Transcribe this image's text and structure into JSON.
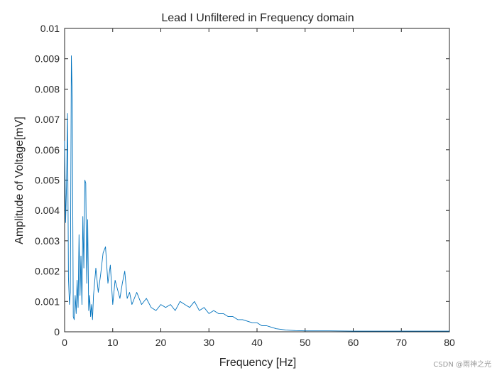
{
  "chart_data": {
    "type": "line",
    "title": "Lead I Unfiltered in Frequency domain",
    "xlabel": "Frequency [Hz]",
    "ylabel": "Amplitude of Voltage[mV]",
    "xlim": [
      0,
      80
    ],
    "ylim": [
      0,
      0.01
    ],
    "xticks": [
      "0",
      "10",
      "20",
      "30",
      "40",
      "50",
      "60",
      "70",
      "80"
    ],
    "yticks": [
      "0",
      "0.001",
      "0.002",
      "0.003",
      "0.004",
      "0.005",
      "0.006",
      "0.007",
      "0.008",
      "0.009",
      "0.01"
    ],
    "grid": false,
    "series_color": "#0072BD",
    "series": [
      {
        "x": [
          0,
          0.2,
          0.4,
          0.6,
          0.8,
          1.0,
          1.2,
          1.4,
          1.6,
          1.8,
          2.0,
          2.2,
          2.4,
          2.6,
          2.8,
          3.0,
          3.2,
          3.4,
          3.6,
          3.8,
          4.0,
          4.2,
          4.4,
          4.6,
          4.8,
          5.0,
          5.2,
          5.4,
          5.6,
          5.8,
          6.0,
          6.5,
          7.0,
          7.5,
          8.0,
          8.5,
          9.0,
          9.5,
          10.0,
          10.5,
          11.0,
          11.5,
          12.0,
          12.5,
          13.0,
          13.5,
          14.0,
          15,
          16,
          17,
          18,
          19,
          20,
          21,
          22,
          23,
          24,
          25,
          26,
          27,
          28,
          29,
          30,
          31,
          32,
          33,
          34,
          35,
          36,
          37,
          38,
          39,
          40,
          41,
          42,
          43,
          44,
          45,
          46,
          47,
          48,
          50,
          55,
          60,
          65,
          70,
          75,
          80
        ],
        "y": [
          0.0063,
          0.0036,
          0.0048,
          0.0072,
          0.0018,
          0.0009,
          0.0013,
          0.0091,
          0.0077,
          0.0005,
          0.0004,
          0.0012,
          0.0006,
          0.0017,
          0.0008,
          0.0032,
          0.0012,
          0.0025,
          0.0009,
          0.0038,
          0.0021,
          0.005,
          0.0049,
          0.0016,
          0.0037,
          0.0007,
          0.0012,
          0.0005,
          0.0009,
          0.0004,
          0.0012,
          0.0021,
          0.0013,
          0.0019,
          0.0026,
          0.0028,
          0.0016,
          0.0022,
          0.0009,
          0.0017,
          0.0014,
          0.0011,
          0.0016,
          0.002,
          0.0011,
          0.0013,
          0.0009,
          0.0013,
          0.0009,
          0.0011,
          0.0008,
          0.0007,
          0.0009,
          0.0008,
          0.0009,
          0.0007,
          0.001,
          0.0009,
          0.0008,
          0.001,
          0.0007,
          0.0008,
          0.0006,
          0.0007,
          0.0006,
          0.0006,
          0.0005,
          0.0005,
          0.0004,
          0.0004,
          0.00035,
          0.0003,
          0.0003,
          0.0002,
          0.0002,
          0.00015,
          0.0001,
          8e-05,
          6e-05,
          5e-05,
          4e-05,
          3e-05,
          3e-05,
          2e-05,
          2e-05,
          2e-05,
          2e-05,
          2e-05
        ]
      }
    ]
  },
  "watermark": "CSDN @雨神之光"
}
